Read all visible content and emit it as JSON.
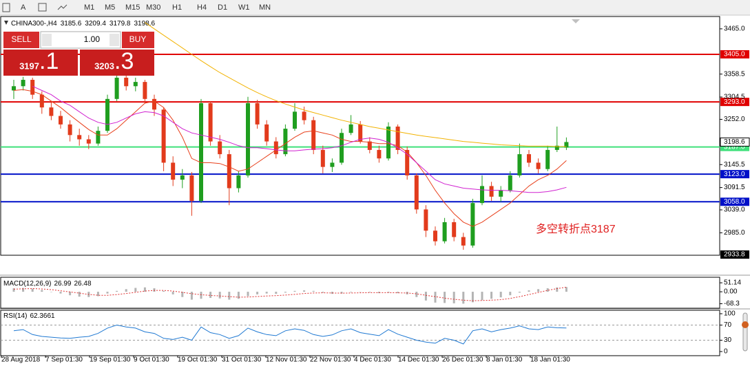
{
  "toolbar": {
    "tools": [
      "A"
    ],
    "timeframes": [
      "M1",
      "M5",
      "M15",
      "M30",
      "H1",
      "H4",
      "D1",
      "W1",
      "MN"
    ]
  },
  "trade_panel": {
    "sell": "SELL",
    "buy": "BUY",
    "lot": "1.00",
    "sell_price": {
      "main": "3197",
      "frac": ".1"
    },
    "buy_price": {
      "main": "3203",
      "frac": ".3"
    }
  },
  "chart_data": [
    {
      "type": "candlestick",
      "title": "CHINA300-,H4",
      "up_color": "#1f9e1f",
      "down_color": "#e23b1c",
      "candles": [
        [
          3320,
          3345,
          3300,
          3330
        ],
        [
          3330,
          3352,
          3320,
          3345
        ],
        [
          3345,
          3350,
          3300,
          3310
        ],
        [
          3310,
          3318,
          3265,
          3280
        ],
        [
          3280,
          3295,
          3250,
          3260
        ],
        [
          3260,
          3272,
          3230,
          3240
        ],
        [
          3240,
          3250,
          3200,
          3215
        ],
        [
          3215,
          3230,
          3190,
          3205
        ],
        [
          3205,
          3215,
          3182,
          3195
        ],
        [
          3195,
          3235,
          3190,
          3225
        ],
        [
          3225,
          3310,
          3220,
          3300
        ],
        [
          3300,
          3365,
          3295,
          3350
        ],
        [
          3350,
          3360,
          3320,
          3330
        ],
        [
          3330,
          3350,
          3318,
          3340
        ],
        [
          3340,
          3345,
          3290,
          3300
        ],
        [
          3300,
          3310,
          3260,
          3275
        ],
        [
          3275,
          3280,
          3130,
          3150
        ],
        [
          3150,
          3165,
          3095,
          3110
        ],
        [
          3110,
          3135,
          3090,
          3120
        ],
        [
          3120,
          3128,
          3025,
          3060
        ],
        [
          3060,
          3300,
          3055,
          3290
        ],
        [
          3290,
          3295,
          3190,
          3200
        ],
        [
          3200,
          3215,
          3160,
          3170
        ],
        [
          3170,
          3180,
          3050,
          3090
        ],
        [
          3090,
          3130,
          3080,
          3120
        ],
        [
          3120,
          3305,
          3115,
          3290
        ],
        [
          3290,
          3298,
          3230,
          3240
        ],
        [
          3240,
          3250,
          3190,
          3200
        ],
        [
          3200,
          3210,
          3160,
          3170
        ],
        [
          3170,
          3240,
          3165,
          3230
        ],
        [
          3230,
          3290,
          3225,
          3270
        ],
        [
          3270,
          3282,
          3240,
          3250
        ],
        [
          3250,
          3258,
          3170,
          3180
        ],
        [
          3180,
          3190,
          3125,
          3140
        ],
        [
          3140,
          3160,
          3128,
          3150
        ],
        [
          3150,
          3230,
          3145,
          3220
        ],
        [
          3220,
          3262,
          3215,
          3240
        ],
        [
          3240,
          3248,
          3195,
          3200
        ],
        [
          3200,
          3210,
          3172,
          3180
        ],
        [
          3180,
          3190,
          3150,
          3160
        ],
        [
          3160,
          3245,
          3155,
          3235
        ],
        [
          3235,
          3240,
          3170,
          3180
        ],
        [
          3180,
          3188,
          3110,
          3120
        ],
        [
          3120,
          3125,
          3030,
          3040
        ],
        [
          3040,
          3050,
          2975,
          2990
        ],
        [
          2990,
          3000,
          2955,
          2965
        ],
        [
          2965,
          3020,
          2960,
          3010
        ],
        [
          3010,
          3018,
          2965,
          2975
        ],
        [
          2975,
          2985,
          2945,
          2955
        ],
        [
          2955,
          3065,
          2950,
          3055
        ],
        [
          3055,
          3120,
          3050,
          3095
        ],
        [
          3095,
          3105,
          3060,
          3070
        ],
        [
          3070,
          3095,
          3058,
          3085
        ],
        [
          3085,
          3130,
          3080,
          3120
        ],
        [
          3120,
          3195,
          3115,
          3170
        ],
        [
          3170,
          3180,
          3140,
          3150
        ],
        [
          3150,
          3160,
          3125,
          3135
        ],
        [
          3135,
          3190,
          3130,
          3180
        ],
        [
          3180,
          3235,
          3175,
          3190
        ],
        [
          3185.6,
          3209.4,
          3179.8,
          3198.6
        ]
      ],
      "ma_lines": [
        {
          "color": "#e8401c",
          "values": [
            3320,
            3322,
            3318,
            3310,
            3295,
            3280,
            3262,
            3245,
            3228,
            3215,
            3215,
            3230,
            3250,
            3270,
            3290,
            3295,
            3280,
            3250,
            3210,
            3160,
            3150,
            3150,
            3148,
            3140,
            3130,
            3135,
            3150,
            3165,
            3180,
            3195,
            3210,
            3222,
            3225,
            3220,
            3215,
            3205,
            3200,
            3200,
            3198,
            3195,
            3195,
            3190,
            3175,
            3150,
            3120,
            3085,
            3055,
            3030,
            3010,
            3000,
            3010,
            3025,
            3040,
            3055,
            3075,
            3095,
            3110,
            3120,
            3135,
            3155
          ]
        },
        {
          "color": "#d020d0",
          "values": [
            null,
            null,
            3330,
            3320,
            3310,
            3295,
            3285,
            3270,
            3255,
            3245,
            3240,
            3245,
            3255,
            3265,
            3270,
            3268,
            3260,
            3245,
            3230,
            3220,
            3215,
            3210,
            3205,
            3198,
            3190,
            3185,
            3185,
            3183,
            3180,
            3178,
            3178,
            3180,
            3182,
            3183,
            3185,
            3190,
            3198,
            3205,
            3208,
            3205,
            3198,
            3185,
            3170,
            3150,
            3130,
            3110,
            3100,
            3095,
            3090,
            3088,
            3086,
            3085,
            3085,
            3084,
            3082,
            3080,
            3080,
            3082,
            3086,
            3092
          ]
        },
        {
          "color": "#f2b200",
          "values": [
            null,
            null,
            null,
            null,
            null,
            null,
            null,
            null,
            null,
            null,
            null,
            null,
            null,
            null,
            3480,
            3465,
            3450,
            3435,
            3420,
            3405,
            3390,
            3376,
            3362,
            3350,
            3338,
            3326,
            3315,
            3305,
            3296,
            3288,
            3281,
            3274,
            3268,
            3262,
            3256,
            3250,
            3245,
            3240,
            3235,
            3231,
            3227,
            3223,
            3219,
            3215,
            3212,
            3209,
            3206,
            3203,
            3200,
            3198,
            3196,
            3194,
            3192,
            3191,
            3190,
            3189,
            3189,
            3189,
            3188,
            3188
          ]
        }
      ],
      "levels": [
        {
          "value": 3405,
          "label": "3405.0",
          "color": "#e00000"
        },
        {
          "value": 3293,
          "label": "3293.0",
          "color": "#e00000"
        },
        {
          "value": 3187,
          "label": "3187.0",
          "color": "#3ee07a"
        },
        {
          "value": 3123,
          "label": "3123.0",
          "color": "#0010c8"
        },
        {
          "value": 3058,
          "label": "3058.0",
          "color": "#0010c8"
        }
      ],
      "annotation": "多空转折点3187",
      "xlabels": [
        "28 Aug 2018",
        "7 Sep 01:30",
        "19 Sep 01:30",
        "9 Oct 01:30",
        "19 Oct 01:30",
        "31 Oct 01:30",
        "12 Nov 01:30",
        "22 Nov 01:30",
        "4 Dec 01:30",
        "14 Dec 01:30",
        "26 Dec 01:30",
        "8 Jan 01:30",
        "18 Jan 01:30"
      ],
      "ylim": [
        2933.8,
        3494
      ],
      "yticks": [
        {
          "value": 3465,
          "label": "3465.0"
        },
        {
          "value": 3358.5,
          "label": "3358.5"
        },
        {
          "value": 3304.5,
          "label": "3304.5"
        },
        {
          "value": 3252,
          "label": "3252.0"
        },
        {
          "value": 3145.5,
          "label": "3145.5"
        },
        {
          "value": 3091.5,
          "label": "3091.5"
        },
        {
          "value": 3039,
          "label": "3039.0"
        },
        {
          "value": 2985,
          "label": "2985.0"
        }
      ]
    },
    {
      "type": "macd",
      "title": "MACD(12,26,9)",
      "hist_color": "#b4b4b4",
      "signal_color": "#e03030",
      "histogram": [
        20,
        22,
        18,
        10,
        0,
        -10,
        -20,
        -28,
        -30,
        -25,
        -10,
        5,
        15,
        22,
        25,
        20,
        5,
        -15,
        -30,
        -45,
        -40,
        -35,
        -38,
        -45,
        -40,
        -25,
        -15,
        -10,
        -12,
        -5,
        5,
        8,
        5,
        -5,
        -12,
        -10,
        -3,
        0,
        -3,
        -8,
        -5,
        -8,
        -15,
        -30,
        -50,
        -62,
        -64,
        -66,
        -68,
        -60,
        -48,
        -40,
        -32,
        -20,
        -5,
        8,
        15,
        20,
        25,
        26.99
      ],
      "signal": [
        15,
        17,
        18,
        16,
        12,
        6,
        -1,
        -8,
        -15,
        -20,
        -20,
        -16,
        -10,
        -3,
        4,
        8,
        8,
        4,
        -3,
        -11,
        -17,
        -21,
        -24,
        -28,
        -31,
        -30,
        -27,
        -24,
        -22,
        -19,
        -15,
        -10,
        -7,
        -6,
        -7,
        -8,
        -7,
        -6,
        -5,
        -5,
        -5,
        -6,
        -7,
        -12,
        -20,
        -28,
        -36,
        -43,
        -48,
        -51,
        -50,
        -48,
        -45,
        -38,
        -28,
        -16,
        -4,
        8,
        18,
        26.48
      ],
      "ylim": [
        -90,
        75
      ],
      "yticks": [
        51.14,
        {
          "value": 0,
          "label": "0.00"
        },
        -68.3
      ]
    },
    {
      "type": "line",
      "title": "RSI(14)",
      "color": "#1e78d2",
      "values": [
        55,
        58,
        45,
        40,
        38,
        36,
        35,
        38,
        40,
        48,
        62,
        70,
        65,
        62,
        52,
        48,
        35,
        32,
        38,
        30,
        65,
        50,
        45,
        35,
        42,
        62,
        52,
        45,
        42,
        55,
        60,
        56,
        45,
        40,
        44,
        55,
        60,
        50,
        46,
        42,
        58,
        46,
        38,
        30,
        25,
        22,
        35,
        30,
        20,
        55,
        60,
        52,
        58,
        62,
        68,
        60,
        58,
        65,
        63,
        62.3661
      ],
      "ylim": [
        0,
        100
      ],
      "yticks": [
        100,
        70,
        30,
        0
      ]
    }
  ]
}
